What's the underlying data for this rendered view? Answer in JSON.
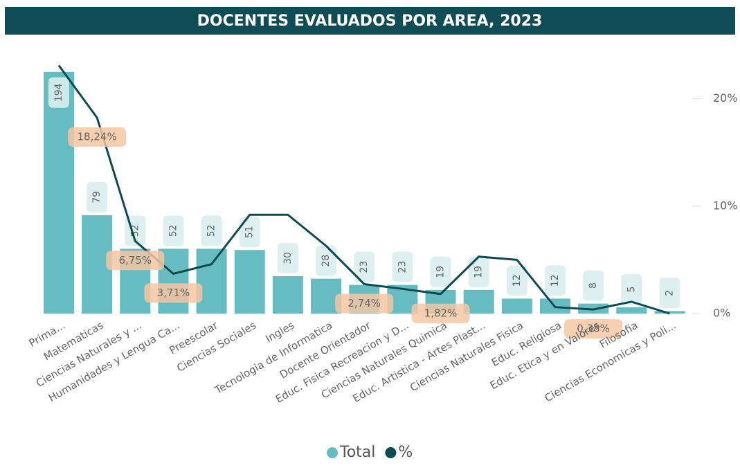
{
  "chart_data": {
    "type": "bar_line_combo",
    "title": "DOCENTES EVALUADOS POR AREA, 2023",
    "categories": [
      "Prima...",
      "Matematicas",
      "Ciencias Naturales y ...",
      "Humanidades y Lengua Ca...",
      "Preescolar",
      "Ciencias Sociales",
      "Ingles",
      "Tecnologia de Informatica",
      "Docente Orientador",
      "Educ. Fisica Recreacion y D...",
      "Ciencias Naturales Quimica",
      "Educ. Artistica - Artes Plast...",
      "Ciencias Naturales Fisica",
      "Educ. Religiosa",
      "Educ. Etica y en Valores",
      "Filosofia",
      "Ciencias Economicas y Poli..."
    ],
    "series": [
      {
        "name": "Total",
        "type": "bar",
        "color": "#66bcc0",
        "values": [
          194,
          79,
          52,
          52,
          52,
          51,
          30,
          28,
          23,
          23,
          19,
          19,
          12,
          12,
          8,
          5,
          2
        ]
      },
      {
        "name": "%",
        "type": "line",
        "axis": "y2",
        "color": "#0d4a52",
        "values": [
          23.1,
          18.24,
          6.75,
          3.71,
          4.6,
          9.2,
          9.2,
          6.3,
          2.74,
          2.3,
          1.82,
          5.3,
          5.0,
          0.6,
          0.38,
          1.1,
          0
        ],
        "value_labels": [
          null,
          "18,24%",
          "6,75%",
          "3,71%",
          null,
          null,
          null,
          null,
          "2,74%",
          null,
          "1,82%",
          null,
          null,
          null,
          "0,38%",
          null,
          null
        ]
      }
    ],
    "ylim": [
      0,
      200
    ],
    "y2lim": [
      0,
      23.2
    ],
    "y2ticks": [
      {
        "value": 0,
        "label": "0%"
      },
      {
        "value": 10,
        "label": "10%"
      },
      {
        "value": 20,
        "label": "20%"
      }
    ],
    "legend": "bottom"
  }
}
